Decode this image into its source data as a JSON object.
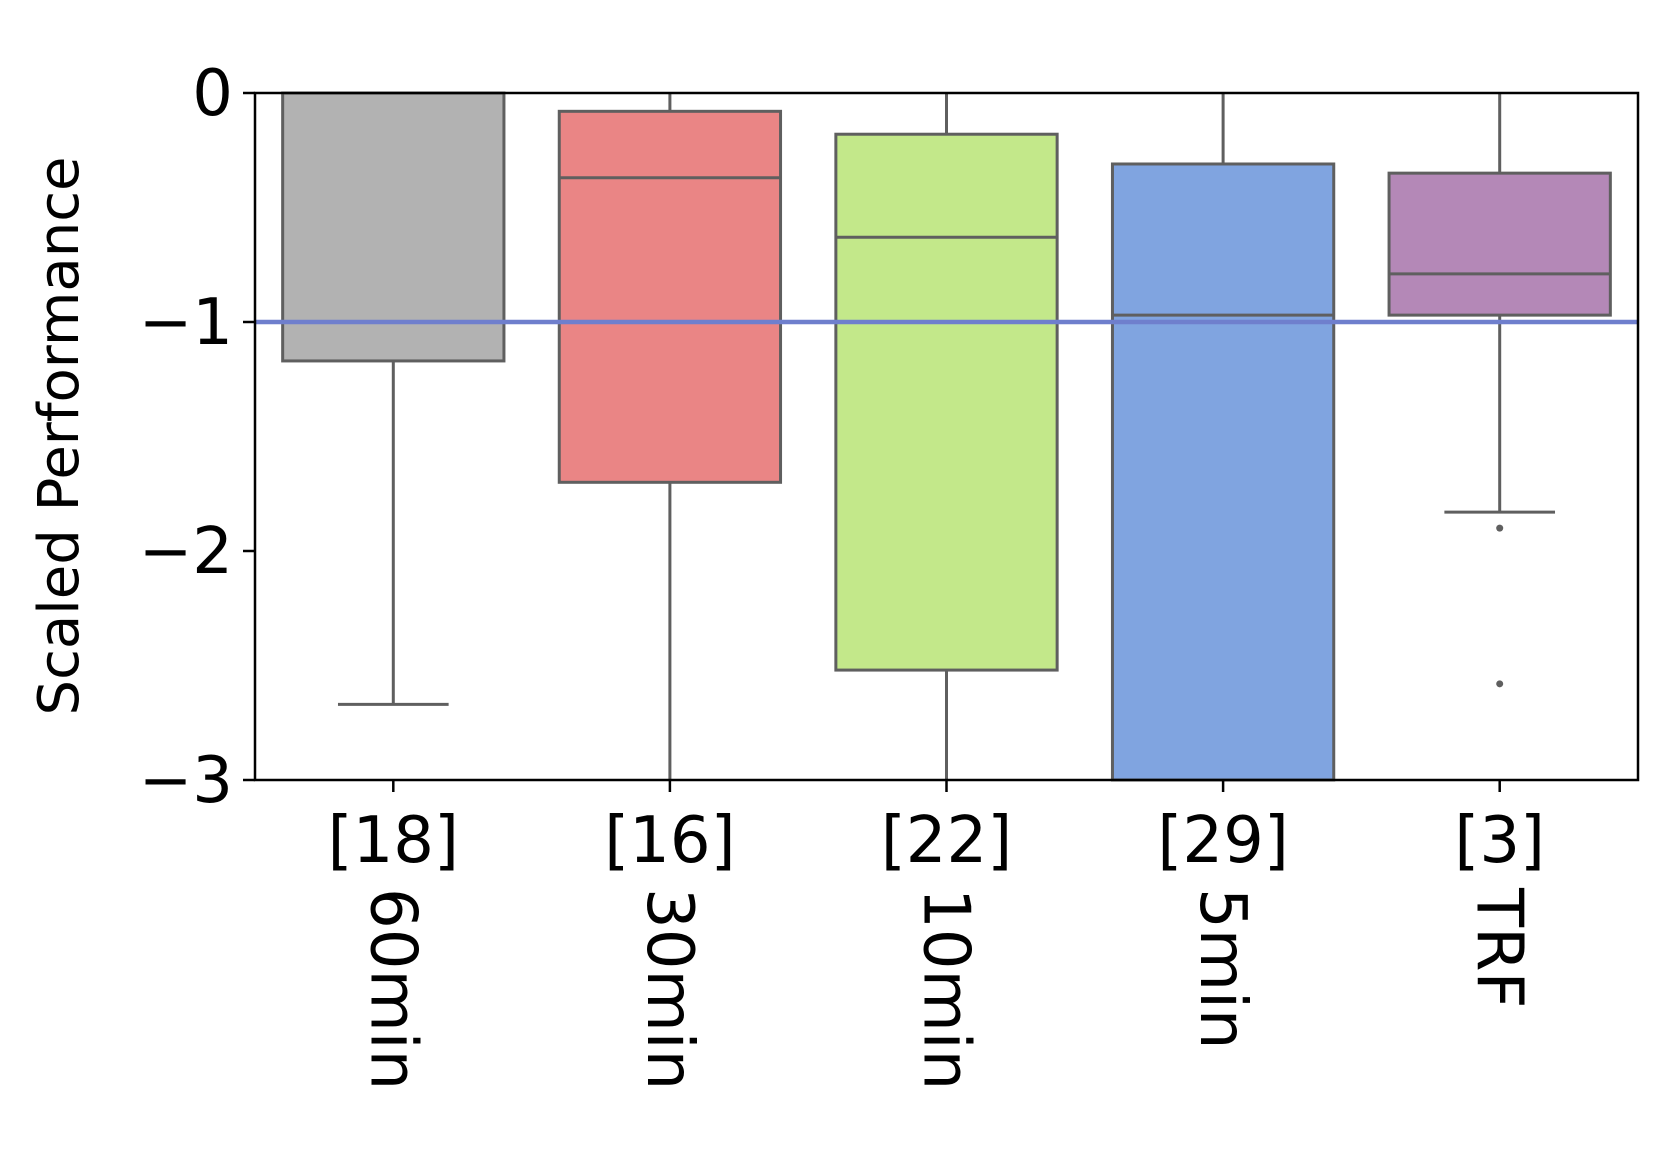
{
  "chart_data": {
    "type": "box",
    "title": "",
    "xlabel": "",
    "ylabel": "Scaled Performance",
    "ylim": [
      -3,
      0
    ],
    "yticks": [
      0,
      -1,
      -2,
      -3
    ],
    "ytick_labels": [
      "0",
      "−1",
      "−2",
      "−3"
    ],
    "reference_line": {
      "y": -1,
      "color": "#6f7fcd"
    },
    "grid": false,
    "legend": "none",
    "categories": [
      {
        "count_label": "[18]",
        "name": "60min",
        "color": "#b2b2b2",
        "q1": -1.17,
        "median": 0.0,
        "q3": 0.0,
        "whisker_low": -2.67,
        "whisker_high": 0.0,
        "outliers": []
      },
      {
        "count_label": "[16]",
        "name": "30min",
        "color": "#ea8585",
        "q1": -1.7,
        "median": -0.37,
        "q3": -0.08,
        "whisker_low": -3.0,
        "whisker_high": 0.0,
        "outliers": []
      },
      {
        "count_label": "[22]",
        "name": "10min",
        "color": "#c3e88a",
        "q1": -2.52,
        "median": -0.63,
        "q3": -0.18,
        "whisker_low": -3.0,
        "whisker_high": 0.0,
        "outliers": []
      },
      {
        "count_label": "[29]",
        "name": "5min",
        "color": "#80a4e0",
        "q1": -3.0,
        "median": -0.97,
        "q3": -0.31,
        "whisker_low": -3.0,
        "whisker_high": 0.0,
        "outliers": []
      },
      {
        "count_label": "[3]",
        "name": "TRF",
        "color": "#b488b7",
        "q1": -0.97,
        "median": -0.79,
        "q3": -0.35,
        "whisker_low": -1.83,
        "whisker_high": 0.0,
        "outliers": [
          -1.9,
          -2.58
        ]
      }
    ],
    "edge_color": "#5f5f5f"
  }
}
